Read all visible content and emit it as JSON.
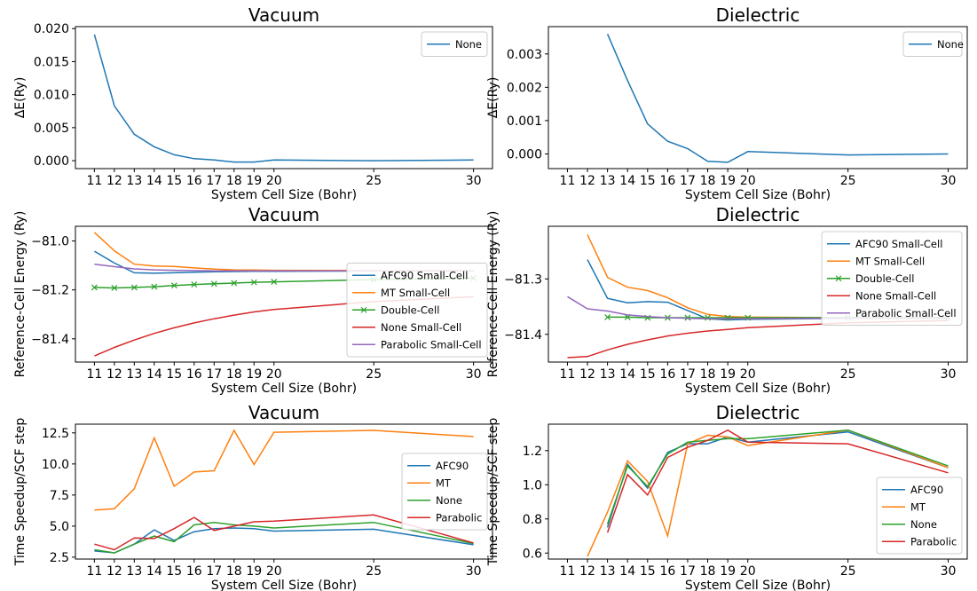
{
  "chart_data": [
    {
      "type": "line",
      "title": "Vacuum",
      "xlabel": "System Cell Size (Bohr)",
      "ylabel": "ΔE(Ry)",
      "xticks": [
        11,
        12,
        13,
        14,
        15,
        16,
        17,
        18,
        19,
        20,
        25,
        30
      ],
      "xlim": [
        10.05,
        30.95
      ],
      "yticks": [
        0.0,
        0.005,
        0.01,
        0.015,
        0.02
      ],
      "ytick_labels": [
        "0.000",
        "0.005",
        "0.010",
        "0.015",
        "0.020"
      ],
      "ylim": [
        -0.0012,
        0.0203
      ],
      "legend_position": "upper right",
      "series": [
        {
          "name": "None",
          "color": "#1f77b4",
          "marker": "none",
          "x": [
            11,
            12,
            13,
            14,
            15,
            16,
            17,
            18,
            19,
            20,
            25,
            30
          ],
          "y": [
            0.0191,
            0.0083,
            0.004,
            0.0021,
            0.0009,
            0.0003,
            0.0001,
            -0.0002,
            -0.0002,
            0.0001,
            0.0,
            0.0001
          ]
        }
      ]
    },
    {
      "type": "line",
      "title": "Dielectric",
      "xlabel": "System Cell Size (Bohr)",
      "ylabel": "ΔE(Ry)",
      "xticks": [
        11,
        12,
        13,
        14,
        15,
        16,
        17,
        18,
        19,
        20,
        25,
        30
      ],
      "xlim": [
        10.05,
        30.95
      ],
      "yticks": [
        0.0,
        0.001,
        0.002,
        0.003
      ],
      "ytick_labels": [
        "0.000",
        "0.001",
        "0.002",
        "0.003"
      ],
      "ylim": [
        -0.00044,
        0.00382
      ],
      "legend_position": "upper right",
      "series": [
        {
          "name": "None",
          "color": "#1f77b4",
          "marker": "none",
          "x": [
            13,
            14,
            15,
            16,
            17,
            18,
            19,
            20,
            25,
            30
          ],
          "y": [
            0.0036,
            0.0022,
            0.0009,
            0.00038,
            0.00016,
            -0.00022,
            -0.00025,
            7e-05,
            -3e-05,
            0.0
          ]
        }
      ]
    },
    {
      "type": "line",
      "title": "Vacuum",
      "xlabel": "System Cell Size (Bohr)",
      "ylabel": "Reference-Cell Energy (Ry)",
      "xticks": [
        11,
        12,
        13,
        14,
        15,
        16,
        17,
        18,
        19,
        20,
        25,
        30
      ],
      "xlim": [
        10.05,
        30.95
      ],
      "yticks": [
        -81.4,
        -81.2,
        -81.0
      ],
      "ytick_labels": [
        "−81.4",
        "−81.2",
        "−81.0"
      ],
      "ylim": [
        -81.495,
        -80.94
      ],
      "legend_position": "lower right",
      "series": [
        {
          "name": "AFC90 Small-Cell",
          "color": "#1f77b4",
          "marker": "none",
          "x": [
            11,
            12,
            13,
            14,
            15,
            16,
            17,
            18,
            19,
            20,
            25,
            30
          ],
          "y": [
            -81.042,
            -81.09,
            -81.13,
            -81.132,
            -81.13,
            -81.128,
            -81.126,
            -81.125,
            -81.124,
            -81.124,
            -81.123,
            -81.122
          ]
        },
        {
          "name": "MT Small-Cell",
          "color": "#ff7f0e",
          "marker": "none",
          "x": [
            11,
            12,
            13,
            14,
            15,
            16,
            17,
            18,
            19,
            20,
            25,
            30
          ],
          "y": [
            -80.965,
            -81.04,
            -81.095,
            -81.102,
            -81.104,
            -81.11,
            -81.115,
            -81.118,
            -81.119,
            -81.12,
            -81.121,
            -81.121
          ]
        },
        {
          "name": "Double-Cell",
          "color": "#2ca02c",
          "marker": "x",
          "x": [
            11,
            12,
            13,
            14,
            15,
            16,
            17,
            18,
            19,
            20,
            25,
            30
          ],
          "y": [
            -81.19,
            -81.192,
            -81.19,
            -81.187,
            -81.182,
            -81.178,
            -81.175,
            -81.172,
            -81.169,
            -81.167,
            -81.158,
            -81.152
          ]
        },
        {
          "name": "None Small-Cell",
          "color": "#d62728",
          "marker": "none",
          "x": [
            11,
            12,
            13,
            14,
            15,
            16,
            17,
            18,
            19,
            20,
            25,
            30
          ],
          "y": [
            -81.47,
            -81.435,
            -81.405,
            -81.378,
            -81.355,
            -81.335,
            -81.318,
            -81.303,
            -81.29,
            -81.28,
            -81.248,
            -81.228
          ]
        },
        {
          "name": "Parabolic Small-Cell",
          "color": "#9467bd",
          "marker": "none",
          "x": [
            11,
            12,
            13,
            14,
            15,
            16,
            17,
            18,
            19,
            20,
            25,
            30
          ],
          "y": [
            -81.095,
            -81.105,
            -81.114,
            -81.118,
            -81.12,
            -81.121,
            -81.122,
            -81.122,
            -81.122,
            -81.122,
            -81.122,
            -81.122
          ]
        }
      ]
    },
    {
      "type": "line",
      "title": "Dielectric",
      "xlabel": "System Cell Size (Bohr)",
      "ylabel": "Reference-Cell Energy (Ry)",
      "xticks": [
        11,
        12,
        13,
        14,
        15,
        16,
        17,
        18,
        19,
        20,
        25,
        30
      ],
      "xlim": [
        10.05,
        30.95
      ],
      "yticks": [
        -81.4,
        -81.3
      ],
      "ytick_labels": [
        "−81.4",
        "−81.3"
      ],
      "ylim": [
        -81.45,
        -81.205
      ],
      "legend_position": "upper right",
      "series": [
        {
          "name": "AFC90 Small-Cell",
          "color": "#1f77b4",
          "marker": "none",
          "x": [
            12,
            13,
            14,
            15,
            16,
            17,
            18,
            19,
            20,
            25,
            30
          ],
          "y": [
            -81.265,
            -81.335,
            -81.343,
            -81.341,
            -81.342,
            -81.357,
            -81.372,
            -81.374,
            -81.373,
            -81.371,
            -81.37
          ]
        },
        {
          "name": "MT Small-Cell",
          "color": "#ff7f0e",
          "marker": "none",
          "x": [
            12,
            13,
            14,
            15,
            16,
            17,
            18,
            19,
            20,
            25,
            30
          ],
          "y": [
            -81.22,
            -81.297,
            -81.315,
            -81.321,
            -81.334,
            -81.352,
            -81.364,
            -81.368,
            -81.369,
            -81.37,
            -81.37
          ]
        },
        {
          "name": "Double-Cell",
          "color": "#2ca02c",
          "marker": "x",
          "x": [
            13,
            14,
            15,
            16,
            17,
            18,
            19,
            20,
            25,
            30
          ],
          "y": [
            -81.369,
            -81.369,
            -81.37,
            -81.37,
            -81.37,
            -81.37,
            -81.37,
            -81.37,
            -81.37,
            -81.37
          ]
        },
        {
          "name": "None Small-Cell",
          "color": "#d62728",
          "marker": "none",
          "x": [
            11,
            12,
            13,
            14,
            15,
            16,
            17,
            18,
            19,
            20,
            25,
            30
          ],
          "y": [
            -81.442,
            -81.44,
            -81.428,
            -81.418,
            -81.41,
            -81.403,
            -81.398,
            -81.394,
            -81.391,
            -81.388,
            -81.379,
            -81.375
          ]
        },
        {
          "name": "Parabolic Small-Cell",
          "color": "#9467bd",
          "marker": "none",
          "x": [
            11,
            12,
            13,
            14,
            15,
            16,
            17,
            18,
            19,
            20,
            25,
            30
          ],
          "y": [
            -81.332,
            -81.354,
            -81.358,
            -81.365,
            -81.368,
            -81.37,
            -81.371,
            -81.372,
            -81.372,
            -81.372,
            -81.371,
            -81.371
          ]
        }
      ]
    },
    {
      "type": "line",
      "title": "Vacuum",
      "xlabel": "System Cell Size (Bohr)",
      "ylabel": "Time Speedup/SCF step",
      "xticks": [
        11,
        12,
        13,
        14,
        15,
        16,
        17,
        18,
        19,
        20,
        25,
        30
      ],
      "xlim": [
        10.05,
        30.95
      ],
      "yticks": [
        2.5,
        5.0,
        7.5,
        10.0,
        12.5
      ],
      "ytick_labels": [
        "2.5",
        "5.0",
        "7.5",
        "10.0",
        "12.5"
      ],
      "ylim": [
        2.35,
        13.2
      ],
      "legend_position": "center right",
      "series": [
        {
          "name": "AFC90",
          "color": "#1f77b4",
          "marker": "none",
          "x": [
            11,
            12,
            13,
            14,
            15,
            16,
            17,
            18,
            19,
            20,
            25,
            30
          ],
          "y": [
            3.0,
            2.85,
            3.55,
            4.7,
            3.85,
            4.55,
            4.8,
            4.85,
            4.8,
            4.6,
            4.75,
            3.5
          ]
        },
        {
          "name": "MT",
          "color": "#ff7f0e",
          "marker": "none",
          "x": [
            11,
            12,
            13,
            14,
            15,
            16,
            17,
            18,
            19,
            20,
            25,
            30
          ],
          "y": [
            6.3,
            6.4,
            8.0,
            12.1,
            8.2,
            9.35,
            9.45,
            12.7,
            9.95,
            12.55,
            12.7,
            12.2
          ]
        },
        {
          "name": "None",
          "color": "#2ca02c",
          "marker": "none",
          "x": [
            11,
            12,
            13,
            14,
            15,
            16,
            17,
            18,
            19,
            20,
            25,
            30
          ],
          "y": [
            3.1,
            2.85,
            3.55,
            4.2,
            3.75,
            5.1,
            5.3,
            5.1,
            5.0,
            4.85,
            5.3,
            3.6
          ]
        },
        {
          "name": "Parabolic",
          "color": "#d62728",
          "marker": "none",
          "x": [
            11,
            12,
            13,
            14,
            15,
            16,
            17,
            18,
            19,
            20,
            25,
            30
          ],
          "y": [
            3.55,
            3.1,
            4.05,
            4.0,
            4.8,
            5.7,
            4.65,
            5.0,
            5.35,
            5.4,
            5.9,
            3.65
          ]
        }
      ]
    },
    {
      "type": "line",
      "title": "Dielectric",
      "xlabel": "System Cell Size (Bohr)",
      "ylabel": "Time Speedup/SCF step",
      "xticks": [
        11,
        12,
        13,
        14,
        15,
        16,
        17,
        18,
        19,
        20,
        25,
        30
      ],
      "xlim": [
        10.05,
        30.95
      ],
      "yticks": [
        0.6,
        0.8,
        1.0,
        1.2
      ],
      "ytick_labels": [
        "0.6",
        "0.8",
        "1.0",
        "1.2"
      ],
      "ylim": [
        0.565,
        1.355
      ],
      "legend_position": "lower right",
      "series": [
        {
          "name": "AFC90",
          "color": "#1f77b4",
          "marker": "none",
          "x": [
            13,
            14,
            15,
            16,
            17,
            18,
            19,
            20,
            25,
            30
          ],
          "y": [
            0.75,
            1.12,
            0.98,
            1.19,
            1.24,
            1.24,
            1.28,
            1.25,
            1.31,
            1.1
          ]
        },
        {
          "name": "MT",
          "color": "#ff7f0e",
          "marker": "none",
          "x": [
            12,
            13,
            14,
            15,
            16,
            17,
            18,
            19,
            20,
            25,
            30
          ],
          "y": [
            0.58,
            0.84,
            1.14,
            1.02,
            0.7,
            1.24,
            1.29,
            1.28,
            1.23,
            1.32,
            1.1
          ]
        },
        {
          "name": "None",
          "color": "#2ca02c",
          "marker": "none",
          "x": [
            13,
            14,
            15,
            16,
            17,
            18,
            19,
            20,
            25,
            30
          ],
          "y": [
            0.77,
            1.11,
            0.99,
            1.18,
            1.25,
            1.26,
            1.27,
            1.27,
            1.32,
            1.11
          ]
        },
        {
          "name": "Parabolic",
          "color": "#d62728",
          "marker": "none",
          "x": [
            13,
            14,
            15,
            16,
            17,
            18,
            19,
            20,
            25,
            30
          ],
          "y": [
            0.72,
            1.06,
            0.94,
            1.16,
            1.22,
            1.26,
            1.32,
            1.25,
            1.24,
            1.07
          ]
        }
      ]
    }
  ]
}
